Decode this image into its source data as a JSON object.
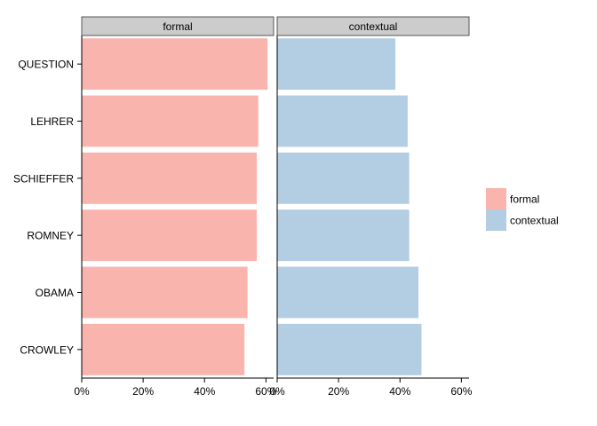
{
  "chart_data": {
    "type": "bar",
    "orientation": "horizontal",
    "facets": [
      "formal",
      "contextual"
    ],
    "categories": [
      "QUESTION",
      "LEHRER",
      "SCHIEFFER",
      "ROMNEY",
      "OBAMA",
      "CROWLEY"
    ],
    "series": [
      {
        "name": "formal",
        "values": [
          60.5,
          57.5,
          57.0,
          57.0,
          54.0,
          53.0
        ]
      },
      {
        "name": "contextual",
        "values": [
          38.5,
          42.5,
          43.0,
          43.0,
          46.0,
          47.0
        ]
      }
    ],
    "x_ticks": [
      "0%",
      "20%",
      "40%",
      "60%"
    ],
    "xlim": [
      0,
      62.5
    ],
    "grid": false,
    "legend_position": "right",
    "colors": {
      "formal": "#F9B4AE",
      "contextual": "#B3CDE3",
      "strip": "#CCCCCC"
    }
  }
}
